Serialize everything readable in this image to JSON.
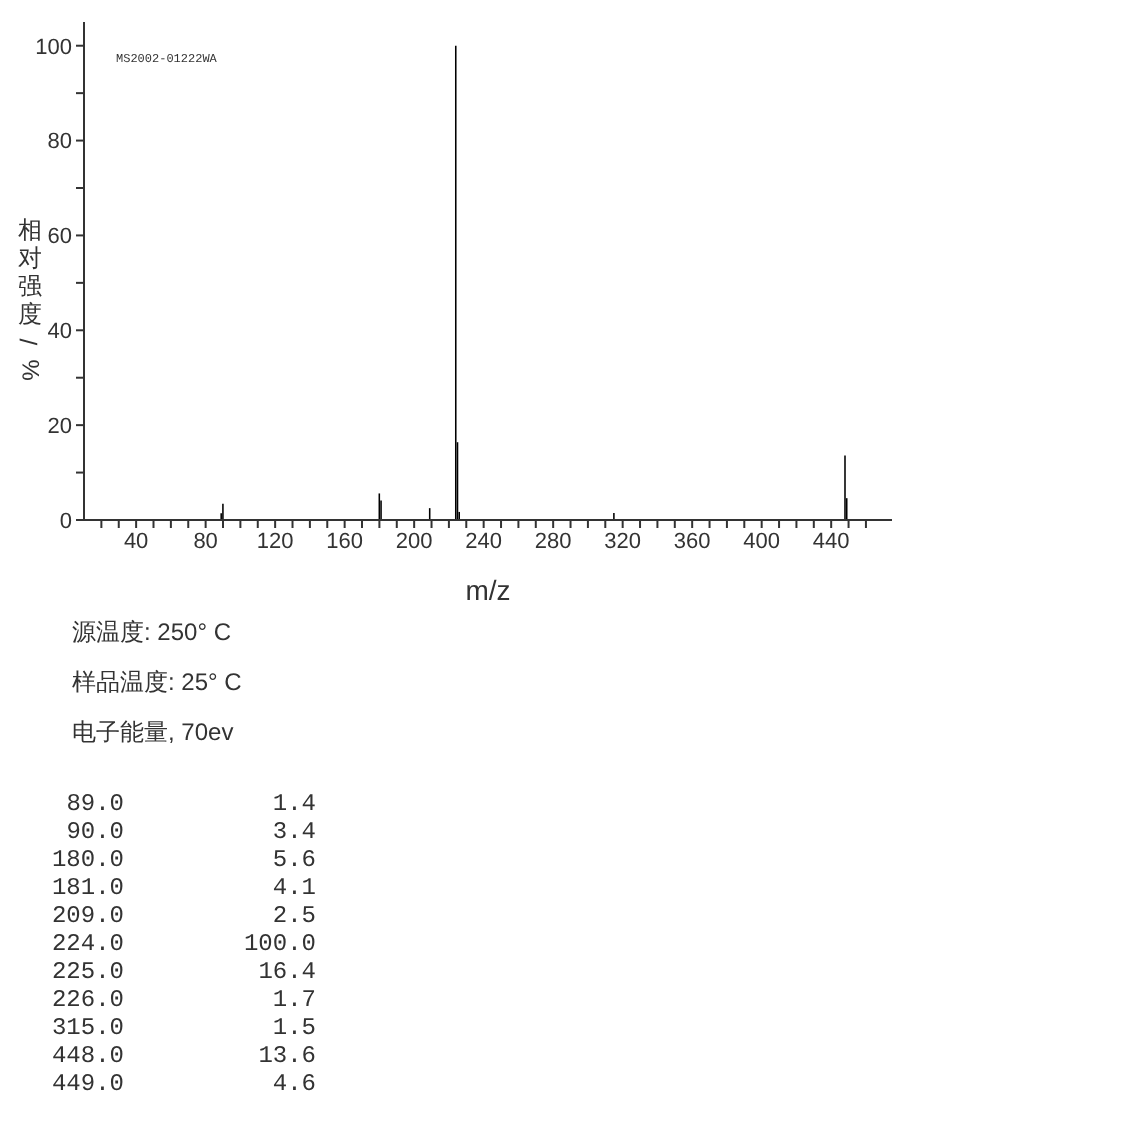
{
  "chart_data": {
    "type": "bar",
    "xlabel": "m/z",
    "ylabel": "相对强度/%",
    "annotations": [
      "MS2002-01222WA",
      "源温度: 250° C",
      "样品温度: 25° C",
      "电子能量, 70ev",
      "89.0",
      "1.4",
      "90.0",
      "3.4",
      "180.0",
      "5.6",
      "181.0",
      "4.1",
      "209.0",
      "2.5",
      "224.0",
      "100.0",
      "225.0",
      "16.4",
      "226.0",
      "1.7",
      "315.0",
      "1.5",
      "448.0",
      "13.6",
      "449.0",
      "4.6"
    ],
    "x": [
      89,
      90,
      180,
      181,
      209,
      224,
      225,
      226,
      315,
      448,
      449
    ],
    "values": [
      1.4,
      3.4,
      5.6,
      4.1,
      2.5,
      100,
      16.4,
      1.7,
      1.5,
      13.6,
      4.6
    ],
    "color": "#000000",
    "xlim": [
      10,
      475
    ],
    "xticks": [
      {
        "value": 20,
        "label": null
      },
      {
        "value": 30,
        "label": null
      },
      40,
      {
        "value": 50,
        "label": null
      },
      {
        "value": 60,
        "label": null
      },
      {
        "value": 70,
        "label": null
      },
      80,
      {
        "value": 90,
        "label": null
      },
      {
        "value": 100,
        "label": null
      },
      {
        "value": 110,
        "label": null
      },
      120,
      {
        "value": 130,
        "label": null
      },
      {
        "value": 140,
        "label": null
      },
      {
        "value": 150,
        "label": null
      },
      160,
      {
        "value": 170,
        "label": null
      },
      {
        "value": 180,
        "label": null
      },
      {
        "value": 190,
        "label": null
      },
      200,
      {
        "value": 210,
        "label": null
      },
      {
        "value": 220,
        "label": null
      },
      {
        "value": 230,
        "label": null
      },
      240,
      {
        "value": 250,
        "label": null
      },
      {
        "value": 260,
        "label": null
      },
      {
        "value": 270,
        "label": null
      },
      280,
      {
        "value": 290,
        "label": null
      },
      {
        "value": 300,
        "label": null
      },
      {
        "value": 310,
        "label": null
      },
      320,
      {
        "value": 330,
        "label": null
      },
      {
        "value": 340,
        "label": null
      },
      {
        "value": 350,
        "label": null
      },
      360,
      {
        "value": 370,
        "label": null
      },
      {
        "value": 380,
        "label": null
      },
      {
        "value": 390,
        "label": null
      },
      400,
      {
        "value": 410,
        "label": null
      },
      {
        "value": 420,
        "label": null
      },
      {
        "value": 430,
        "label": null
      },
      440,
      {
        "value": 450,
        "label": null
      },
      {
        "value": 460,
        "label": null
      }
    ],
    "ylim": [
      0,
      105
    ],
    "yticks": [
      0,
      {
        "value": 10,
        "label": null
      },
      20,
      {
        "value": 30,
        "label": null
      },
      40,
      {
        "value": 50,
        "label": null
      },
      60,
      {
        "value": 70,
        "label": null
      },
      80,
      {
        "value": 90,
        "label": null
      },
      100
    ]
  }
}
